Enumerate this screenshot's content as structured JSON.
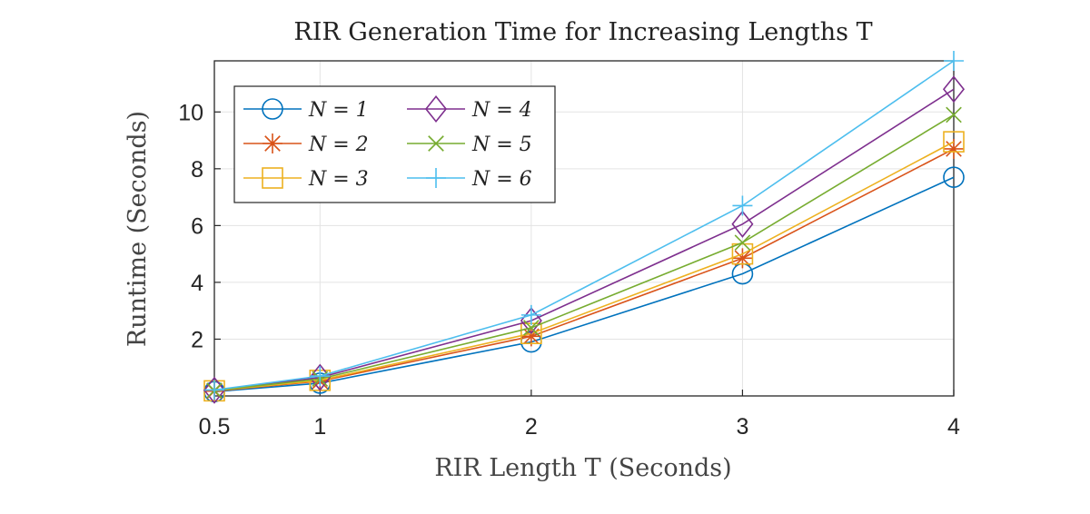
{
  "chart_data": {
    "type": "line",
    "title": "RIR Generation Time for Increasing Lengths T",
    "xlabel": "RIR Length T (Seconds)",
    "ylabel": "Runtime (Seconds)",
    "x": [
      0.5,
      1,
      2,
      3,
      4
    ],
    "xticks": [
      0.5,
      1,
      2,
      3,
      4
    ],
    "xtick_labels": [
      "0.5",
      "1",
      "2",
      "3",
      "4"
    ],
    "yticks": [
      2,
      4,
      6,
      8,
      10
    ],
    "ytick_labels": [
      "2",
      "4",
      "6",
      "8",
      "10"
    ],
    "xlim": [
      0.5,
      4
    ],
    "ylim": [
      0,
      11.8
    ],
    "grid": true,
    "legend_position": "top-left",
    "series": [
      {
        "name": "N = 1",
        "marker": "circle",
        "color": "#0072BD",
        "values": [
          0.15,
          0.45,
          1.9,
          4.3,
          7.7
        ]
      },
      {
        "name": "N = 2",
        "marker": "asterisk",
        "color": "#D95319",
        "values": [
          0.17,
          0.52,
          2.1,
          4.85,
          8.7
        ]
      },
      {
        "name": "N = 3",
        "marker": "square",
        "color": "#EDB120",
        "values": [
          0.18,
          0.55,
          2.2,
          5.0,
          8.95
        ]
      },
      {
        "name": "N = 4",
        "marker": "diamond",
        "color": "#7E2F8E",
        "values": [
          0.2,
          0.65,
          2.65,
          6.05,
          10.8
        ]
      },
      {
        "name": "N = 5",
        "marker": "x",
        "color": "#77AC30",
        "values": [
          0.19,
          0.6,
          2.4,
          5.4,
          9.9
        ]
      },
      {
        "name": "N = 6",
        "marker": "plus",
        "color": "#4DBEEE",
        "values": [
          0.21,
          0.7,
          2.85,
          6.7,
          11.8
        ]
      }
    ]
  }
}
